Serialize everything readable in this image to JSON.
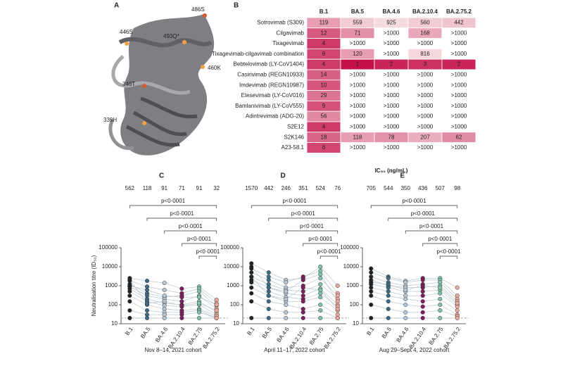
{
  "panels": {
    "A": {
      "label": "A",
      "annotations": [
        "486S",
        "446S",
        "493Q*",
        "460K",
        "346T",
        "339H"
      ]
    },
    "B": {
      "label": "B",
      "xlabel": "IC₅₀ (ng/mL)",
      "columns": [
        "B.1",
        "BA.5",
        "BA.4.6",
        "BA.2.10.4",
        "BA.2.75.2"
      ],
      "rows": [
        {
          "name": "Sotrovimab (S309)",
          "values": [
            119,
            559,
            925,
            560,
            442
          ]
        },
        {
          "name": "Cilgavimab",
          "values": [
            12,
            71,
            ">1000",
            168,
            ">1000"
          ]
        },
        {
          "name": "Tixagevimab",
          "values": [
            4,
            ">1000",
            ">1000",
            ">1000",
            ">1000"
          ]
        },
        {
          "name": "Tixagevimab-cilgavimab combination",
          "values": [
            6,
            120,
            ">1000",
            816,
            ">1000"
          ]
        },
        {
          "name": "Bebtelovimab (LY-CoV1404)",
          "values": [
            4,
            1,
            2,
            3,
            2
          ]
        },
        {
          "name": "Casirivimab (REGN10933)",
          "values": [
            14,
            ">1000",
            ">1000",
            ">1000",
            ">1000"
          ]
        },
        {
          "name": "Imdevimab (REGN10987)",
          "values": [
            10,
            ">1000",
            ">1000",
            ">1000",
            ">1000"
          ]
        },
        {
          "name": "Etesevimab (LY-CoV016)",
          "values": [
            29,
            ">1000",
            ">1000",
            ">1000",
            ">1000"
          ]
        },
        {
          "name": "Bamlanivimab (LY-CoV555)",
          "values": [
            9,
            ">1000",
            ">1000",
            ">1000",
            ">1000"
          ]
        },
        {
          "name": "Adintrevimab (ADG-20)",
          "values": [
            56,
            ">1000",
            ">1000",
            ">1000",
            ">1000"
          ]
        },
        {
          "name": "S2E12",
          "values": [
            4,
            ">1000",
            ">1000",
            ">1000",
            ">1000"
          ]
        },
        {
          "name": "S2K146",
          "values": [
            18,
            118,
            78,
            207,
            62
          ]
        },
        {
          "name": "A23-58.1",
          "values": [
            6,
            ">1000",
            ">1000",
            ">1000",
            ">1000"
          ]
        }
      ]
    }
  },
  "chart_data": [
    {
      "type": "line",
      "label": "C",
      "ylabel": "Neutralisation titre (ID₅₀)",
      "xlabel": "Nov 8–14, 2021 cohort",
      "categories": [
        "B.1",
        "BA.5",
        "BA.4.6",
        "BA.2.10.4",
        "BA.2.75",
        "BA.2.75.2"
      ],
      "colors": [
        "#222222",
        "#3d6b82",
        "#b3c6d3",
        "#7a1f5c",
        "#7fc2a9",
        "#eaa99c"
      ],
      "top_labels": [
        562,
        118,
        91,
        71,
        91,
        32
      ],
      "comparisons": [
        {
          "label": "p<0·0001"
        },
        {
          "label": "p<0·0001"
        },
        {
          "label": "p<0·0001"
        },
        {
          "label": "p<0·0001"
        },
        {
          "label": "p<0·0001"
        }
      ],
      "ylim": [
        10,
        100000
      ],
      "yticks": [
        10,
        100,
        1000,
        10000,
        100000
      ],
      "log_scale": true,
      "reference_line": 20,
      "series": [
        {
          "values": [
            2500,
            1800,
            1400,
            700,
            900,
            180
          ]
        },
        {
          "values": [
            1800,
            900,
            600,
            400,
            700,
            120
          ]
        },
        {
          "values": [
            1200,
            400,
            250,
            300,
            500,
            90
          ]
        },
        {
          "values": [
            900,
            300,
            200,
            150,
            300,
            60
          ]
        },
        {
          "values": [
            700,
            200,
            120,
            100,
            150,
            40
          ]
        },
        {
          "values": [
            500,
            150,
            90,
            80,
            100,
            30
          ]
        },
        {
          "values": [
            300,
            100,
            60,
            50,
            60,
            25
          ]
        },
        {
          "values": [
            150,
            50,
            40,
            40,
            50,
            20
          ]
        },
        {
          "values": [
            50,
            30,
            30,
            30,
            40,
            20
          ]
        },
        {
          "values": [
            20,
            20,
            20,
            20,
            20,
            20
          ]
        },
        {
          "values": [
            1000,
            600,
            300,
            250,
            250,
            100
          ]
        },
        {
          "values": [
            2000,
            120,
            150,
            90,
            120,
            50
          ]
        }
      ]
    },
    {
      "type": "line",
      "label": "D",
      "xlabel": "April 11–17, 2022 cohort",
      "categories": [
        "B.1",
        "BA.5",
        "BA.4.6",
        "BA.2.10.4",
        "BA.2.75",
        "BA.2.75.2"
      ],
      "colors": [
        "#222222",
        "#3d6b82",
        "#b3c6d3",
        "#7a1f5c",
        "#7fc2a9",
        "#eaa99c"
      ],
      "top_labels": [
        1570,
        442,
        246,
        351,
        524,
        76
      ],
      "comparisons": [
        {
          "label": "p<0·0001"
        },
        {
          "label": "p<0·0001"
        },
        {
          "label": "p<0·0001"
        },
        {
          "label": "p<0·0001"
        },
        {
          "label": "p<0·0001"
        }
      ],
      "ylim": [
        10,
        100000
      ],
      "yticks": [
        10,
        100,
        1000,
        10000,
        100000
      ],
      "log_scale": true,
      "reference_line": 20,
      "series": [
        {
          "values": [
            15000,
            5000,
            2000,
            2500,
            10000,
            1000
          ]
        },
        {
          "values": [
            8000,
            3000,
            1500,
            3000,
            6000,
            400
          ]
        },
        {
          "values": [
            5000,
            2000,
            800,
            1000,
            2500,
            300
          ]
        },
        {
          "values": [
            3000,
            1200,
            600,
            500,
            1200,
            200
          ]
        },
        {
          "values": [
            2000,
            800,
            400,
            300,
            700,
            100
          ]
        },
        {
          "values": [
            1500,
            500,
            250,
            200,
            400,
            80
          ]
        },
        {
          "values": [
            800,
            300,
            150,
            150,
            250,
            50
          ]
        },
        {
          "values": [
            400,
            150,
            100,
            60,
            100,
            30
          ]
        },
        {
          "values": [
            150,
            60,
            40,
            40,
            50,
            20
          ]
        },
        {
          "values": [
            20,
            20,
            20,
            20,
            20,
            20
          ]
        },
        {
          "values": [
            10000,
            800,
            500,
            2000,
            4000,
            150
          ]
        },
        {
          "values": [
            3000,
            300,
            200,
            800,
            600,
            60
          ]
        }
      ]
    },
    {
      "type": "line",
      "label": "E",
      "xlabel": "Aug 29–Sept 4, 2022 cohort",
      "categories": [
        "B.1",
        "BA.5",
        "BA.4.6",
        "BA.2.10.4",
        "BA.2.75",
        "BA.2.75.2"
      ],
      "colors": [
        "#222222",
        "#3d6b82",
        "#b3c6d3",
        "#7a1f5c",
        "#7fc2a9",
        "#eaa99c"
      ],
      "top_labels": [
        705,
        544,
        350,
        436,
        507,
        98
      ],
      "comparisons": [
        {
          "label": "p<0·0001"
        },
        {
          "label": "p<0·0001"
        },
        {
          "label": "p<0·0001"
        },
        {
          "label": "p<0·0001"
        },
        {
          "label": "p<0·0001"
        }
      ],
      "ylim": [
        10,
        100000
      ],
      "yticks": [
        10,
        100,
        1000,
        10000,
        100000
      ],
      "log_scale": true,
      "reference_line": 20,
      "series": [
        {
          "values": [
            8000,
            3000,
            1800,
            2500,
            2500,
            800
          ]
        },
        {
          "values": [
            5000,
            2500,
            1500,
            2000,
            2000,
            300
          ]
        },
        {
          "values": [
            3000,
            1500,
            1000,
            1200,
            1500,
            200
          ]
        },
        {
          "values": [
            2000,
            1000,
            800,
            800,
            1000,
            150
          ]
        },
        {
          "values": [
            1200,
            800,
            500,
            500,
            600,
            100
          ]
        },
        {
          "values": [
            800,
            500,
            300,
            300,
            400,
            80
          ]
        },
        {
          "values": [
            500,
            300,
            200,
            150,
            200,
            50
          ]
        },
        {
          "values": [
            300,
            150,
            100,
            80,
            100,
            30
          ]
        },
        {
          "values": [
            100,
            60,
            40,
            40,
            50,
            25
          ]
        },
        {
          "values": [
            20,
            20,
            20,
            20,
            20,
            20
          ]
        },
        {
          "values": [
            1500,
            1200,
            600,
            1000,
            800,
            120
          ]
        }
      ]
    }
  ]
}
